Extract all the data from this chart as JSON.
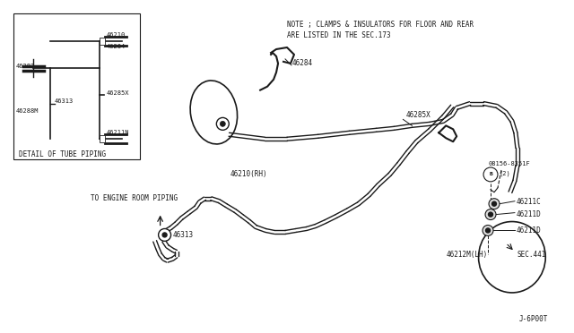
{
  "bg_color": "#ffffff",
  "line_color": "#1a1a1a",
  "text_color": "#1a1a1a",
  "note_line1": "NOTE ; CLAMPS & INSULATORS FOR FLOOR AND REAR",
  "note_line2": "ARE LISTED IN THE SEC.173",
  "footer": "J-6P00T",
  "detail_box_label": "DETAIL OF TUBE PIPING",
  "fs": 5.5
}
